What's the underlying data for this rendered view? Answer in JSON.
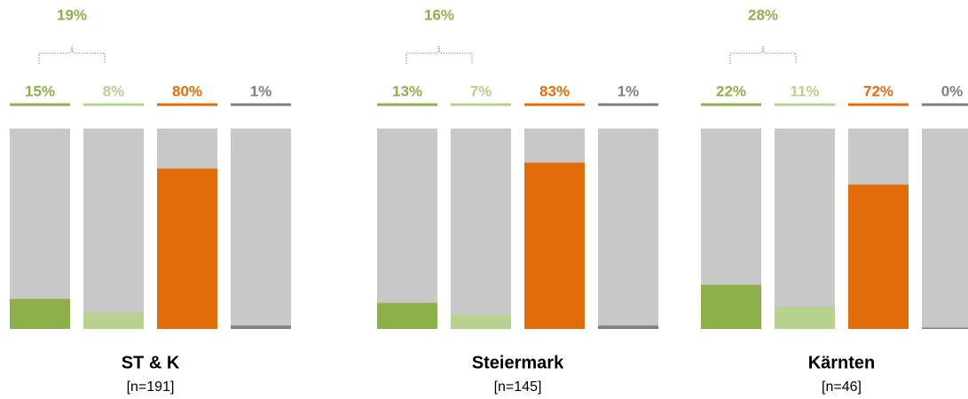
{
  "chart_data": [
    {
      "type": "bar",
      "title": "ST & K",
      "subtitle": "[n=191]",
      "values": [
        15,
        8,
        80,
        1
      ],
      "value_labels": [
        "15%",
        "8%",
        "80%",
        "1%"
      ],
      "annotation": {
        "value": 19,
        "label": "19%"
      },
      "colors": [
        "#8db04a",
        "#b7d18f",
        "#e36c0a",
        "#808080"
      ],
      "ylim": [
        0,
        100
      ]
    },
    {
      "type": "bar",
      "title": "Steiermark",
      "subtitle": "[n=145]",
      "values": [
        13,
        7,
        83,
        1
      ],
      "value_labels": [
        "13%",
        "7%",
        "83%",
        "1%"
      ],
      "annotation": {
        "value": 16,
        "label": "16%"
      },
      "colors": [
        "#8db04a",
        "#b7d18f",
        "#e36c0a",
        "#808080"
      ],
      "ylim": [
        0,
        100
      ]
    },
    {
      "type": "bar",
      "title": "Kärnten",
      "subtitle": "[n=46]",
      "values": [
        22,
        11,
        72,
        0
      ],
      "value_labels": [
        "22%",
        "11%",
        "72%",
        "0%"
      ],
      "annotation": {
        "value": 28,
        "label": "28%"
      },
      "colors": [
        "#8db04a",
        "#b7d18f",
        "#e36c0a",
        "#808080"
      ],
      "ylim": [
        0,
        100
      ]
    }
  ]
}
